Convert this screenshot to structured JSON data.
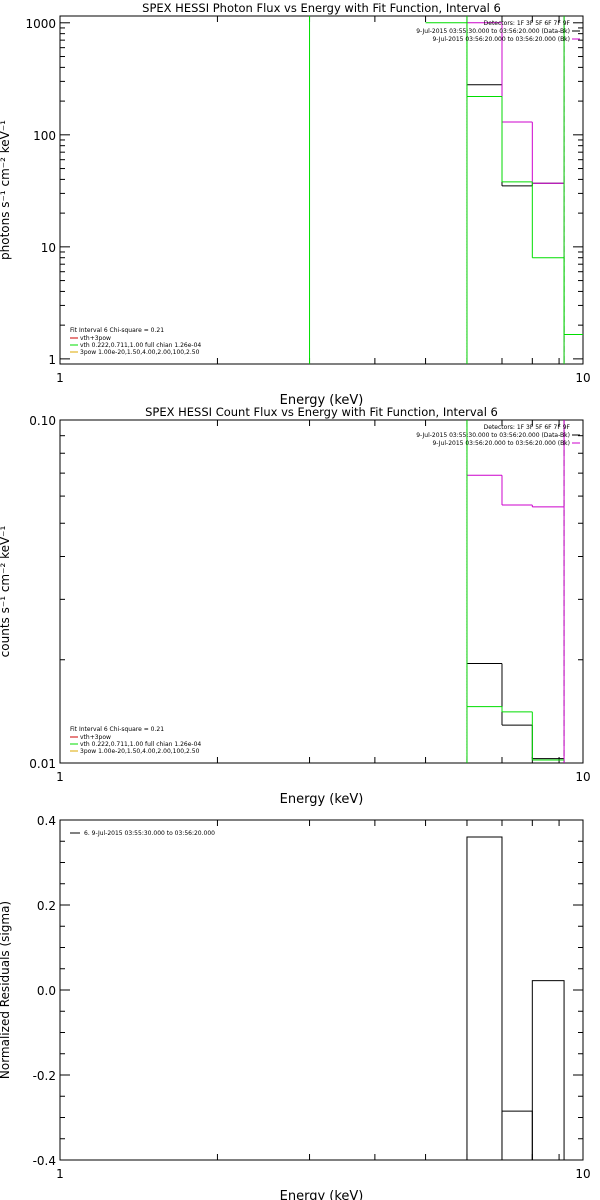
{
  "chart_data": [
    {
      "id": "p1",
      "type": "line",
      "title": "SPEX HESSI Photon Flux vs Energy with Fit Function, Interval 6",
      "xlabel": "Energy (keV)",
      "ylabel": "photons s⁻¹ cm⁻² keV⁻¹",
      "xscale": "log",
      "yscale": "log",
      "xlim": [
        1,
        10
      ],
      "ylim": [
        0.9,
        1150
      ],
      "xticks": [
        {
          "v": 1,
          "label": "1"
        },
        {
          "v": 10,
          "label": "10"
        }
      ],
      "yticks": [
        {
          "v": 1,
          "label": "1"
        },
        {
          "v": 10,
          "label": "10"
        },
        {
          "v": 100,
          "label": "100"
        },
        {
          "v": 1000,
          "label": "1000"
        }
      ],
      "minor_y": true,
      "vlines": [
        {
          "x": 6.0,
          "style": "dotted",
          "color": "#000000"
        },
        {
          "x": 9.2,
          "style": "dashed",
          "color": "#000000"
        }
      ],
      "series": [
        {
          "color": "#000000",
          "steps": [
            [
              6.0,
              7.0,
              280
            ],
            [
              7.0,
              8.0,
              35
            ],
            [
              8.0,
              9.2,
              37
            ]
          ]
        },
        {
          "color": "#cc00cc",
          "steps": [
            [
              6.0,
              7.0,
              1000
            ],
            [
              7.0,
              8.0,
              130
            ],
            [
              8.0,
              9.2,
              37
            ]
          ],
          "vedges": [
            6.0,
            9.2
          ]
        },
        {
          "color": "#00dd00",
          "steps": [
            [
              5.0,
              6.0,
              1000
            ],
            [
              6.0,
              7.0,
              220
            ],
            [
              7.0,
              8.0,
              38
            ],
            [
              8.0,
              9.2,
              8
            ],
            [
              9.2,
              10,
              1.65
            ]
          ],
          "vedges": [
            3.0,
            6.0,
            9.2
          ]
        }
      ],
      "legend_right": {
        "header": "Detectors: 1F 3F 5F 6F 7F 9F",
        "items": [
          {
            "label": "9-Jul-2015 03:55:30.000 to 03:56:20.000 (Data-Bk)",
            "color": "#000000"
          },
          {
            "label": "9-Jul-2015 03:56:20.000 to 03:56:20.000 (Bk)",
            "color": "#cc00cc"
          }
        ]
      },
      "legend_left": {
        "header": "Fit Interval  6    Chi-square = 0.21",
        "items": [
          {
            "label": "vth+3pow",
            "color": "#cc0000"
          },
          {
            "label": "vth 0.222,0.711,1.00  full chian 1.26e-04",
            "color": "#00dd00"
          },
          {
            "label": "3pow 1.00e-20,1.50,4.00,2.00,100,2.50",
            "color": "#ddaa00"
          }
        ]
      }
    },
    {
      "id": "p2",
      "type": "line",
      "title": "SPEX HESSI Count Flux vs Energy with Fit Function, Interval 6",
      "xlabel": "Energy (keV)",
      "ylabel": "counts s⁻¹ cm⁻² keV⁻¹",
      "xscale": "log",
      "yscale": "log",
      "xlim": [
        1,
        10
      ],
      "ylim": [
        0.01,
        0.1
      ],
      "xticks": [
        {
          "v": 1,
          "label": "1"
        },
        {
          "v": 10,
          "label": "10"
        }
      ],
      "yticks": [
        {
          "v": 0.01,
          "label": "0.01"
        },
        {
          "v": 0.1,
          "label": "0.10"
        }
      ],
      "minor_y": true,
      "vlines": [
        {
          "x": 6.0,
          "style": "dotted",
          "color": "#000000"
        },
        {
          "x": 9.2,
          "style": "dashed",
          "color": "#000000"
        }
      ],
      "series": [
        {
          "color": "#000000",
          "steps": [
            [
              6.0,
              7.0,
              0.0195
            ],
            [
              7.0,
              8.0,
              0.0129
            ],
            [
              8.0,
              9.2,
              0.0103
            ]
          ]
        },
        {
          "color": "#cc00cc",
          "steps": [
            [
              6.0,
              7.0,
              0.069
            ],
            [
              7.0,
              8.0,
              0.0565
            ],
            [
              8.0,
              9.2,
              0.0558
            ]
          ],
          "vedges": [
            6.0,
            9.2
          ]
        },
        {
          "color": "#00dd00",
          "steps": [
            [
              6.0,
              7.0,
              0.0146
            ],
            [
              7.0,
              8.0,
              0.0141
            ],
            [
              8.0,
              9.2,
              0.0102
            ]
          ],
          "vedges": [
            6.0
          ]
        }
      ],
      "legend_right": {
        "header": "Detectors: 1F 3F 5F 6F 7F 9F",
        "items": [
          {
            "label": "9-Jul-2015 03:55:30.000 to 03:56:20.000 (Data-Bk)",
            "color": "#000000"
          },
          {
            "label": "9-Jul-2015 03:56:20.000 to 03:56:20.000 (Bk)",
            "color": "#cc00cc"
          }
        ]
      },
      "legend_left": {
        "header": "Fit Interval  6    Chi-square = 0.21",
        "items": [
          {
            "label": "vth+3pow",
            "color": "#cc0000"
          },
          {
            "label": "vth 0.222,0.711,1.00  full chian 1.26e-04",
            "color": "#00dd00"
          },
          {
            "label": "3pow 1.00e-20,1.50,4.00,2.00,100,2.50",
            "color": "#ddaa00"
          }
        ]
      }
    },
    {
      "id": "p3",
      "type": "bar",
      "title": "",
      "xlabel": "Energy (keV)",
      "ylabel": "Normalized Residuals (sigma)",
      "xscale": "log",
      "yscale": "linear",
      "xlim": [
        1,
        10
      ],
      "ylim": [
        -0.4,
        0.4
      ],
      "xticks": [
        {
          "v": 1,
          "label": "1"
        },
        {
          "v": 10,
          "label": "10"
        }
      ],
      "yticks": [
        {
          "v": -0.4,
          "label": "-0.4"
        },
        {
          "v": -0.2,
          "label": "-0.2"
        },
        {
          "v": 0.0,
          "label": "0.0"
        },
        {
          "v": 0.2,
          "label": "0.2"
        },
        {
          "v": 0.4,
          "label": "0.4"
        }
      ],
      "minor_y": false,
      "vlines": [],
      "bars": [
        {
          "x0": 6.0,
          "x1": 7.0,
          "y": 0.36
        },
        {
          "x0": 7.0,
          "x1": 8.0,
          "y": -0.285
        },
        {
          "x0": 8.0,
          "x1": 9.2,
          "y": 0.022
        }
      ],
      "legend_left_top": {
        "items": [
          {
            "label": "6. 9-Jul-2015 03:55:30.000 to 03:56:20.000",
            "color": "#000000"
          }
        ]
      }
    }
  ]
}
